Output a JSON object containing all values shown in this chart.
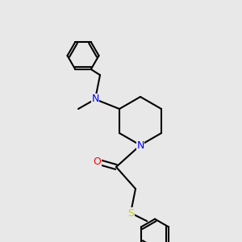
{
  "bg_color": "#e8e8e8",
  "bond_color": "#000000",
  "bond_width": 1.5,
  "atom_colors": {
    "N": "#0000ff",
    "O": "#ff0000",
    "S": "#cccc00",
    "C": "#000000"
  },
  "font_size": 9,
  "label_font_size": 9
}
